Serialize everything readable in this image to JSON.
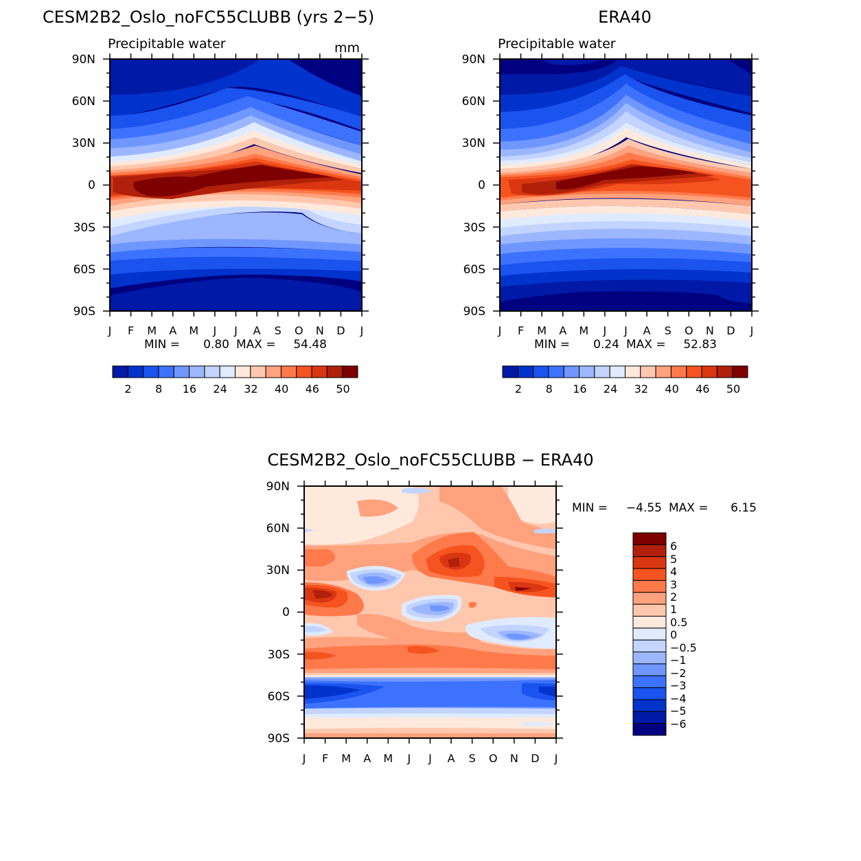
{
  "chart_data": [
    {
      "id": "model",
      "type": "heatmap",
      "title": "CESM2B2_Oslo_noFC55CLUBB (yrs 2−5)",
      "subtitle": "Precipitable water",
      "units": "mm",
      "x_ticks": [
        "J",
        "F",
        "M",
        "A",
        "M",
        "J",
        "J",
        "A",
        "S",
        "O",
        "N",
        "D",
        "J"
      ],
      "y_ticks": [
        "90N",
        "60N",
        "30N",
        "0",
        "30S",
        "60S",
        "90S"
      ],
      "min_label": "MIN =",
      "min_value": "0.80",
      "max_label": "MAX =",
      "max_value": "54.48",
      "colorbar_labels": [
        "2",
        "8",
        "16",
        "24",
        "32",
        "40",
        "46",
        "50"
      ]
    },
    {
      "id": "obs",
      "type": "heatmap",
      "title": "ERA40",
      "subtitle": "Precipitable water",
      "x_ticks": [
        "J",
        "F",
        "M",
        "A",
        "M",
        "J",
        "J",
        "A",
        "S",
        "O",
        "N",
        "D",
        "J"
      ],
      "y_ticks": [
        "90N",
        "60N",
        "30N",
        "0",
        "30S",
        "60S",
        "90S"
      ],
      "min_label": "MIN =",
      "min_value": "0.24",
      "max_label": "MAX =",
      "max_value": "52.83",
      "colorbar_labels": [
        "2",
        "8",
        "16",
        "24",
        "32",
        "40",
        "46",
        "50"
      ]
    },
    {
      "id": "diff",
      "type": "heatmap",
      "title": "CESM2B2_Oslo_noFC55CLUBB − ERA40",
      "x_ticks": [
        "J",
        "F",
        "M",
        "A",
        "M",
        "J",
        "J",
        "A",
        "S",
        "O",
        "N",
        "D",
        "J"
      ],
      "y_ticks": [
        "90N",
        "60N",
        "30N",
        "0",
        "30S",
        "60S",
        "90S"
      ],
      "min_label": "MIN =",
      "min_value": "−4.55",
      "max_label": "MAX =",
      "max_value": "6.15",
      "colorbar_labels": [
        "6",
        "5",
        "4",
        "3",
        "2",
        "1",
        "0.5",
        "0",
        "−0.5",
        "−1",
        "−2",
        "−3",
        "−4",
        "−5",
        "−6"
      ]
    }
  ],
  "palette": [
    "#000080",
    "#0019a6",
    "#0033cc",
    "#1a53ee",
    "#3d72ff",
    "#6f97ff",
    "#9cb7ff",
    "#c2d4ff",
    "#e0ebff",
    "#ffe9dc",
    "#ffc8ae",
    "#ffa27d",
    "#ff7a4b",
    "#f5531f",
    "#d93611",
    "#b0200a",
    "#7e0000"
  ]
}
